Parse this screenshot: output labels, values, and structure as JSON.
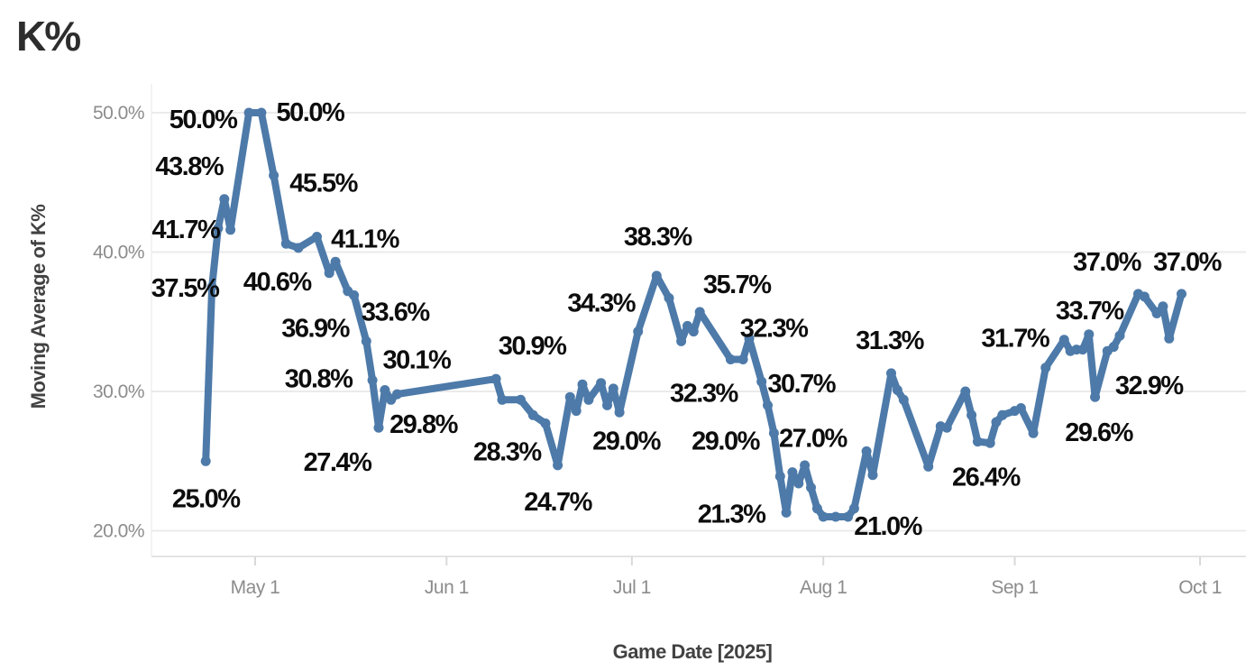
{
  "chart_data": {
    "type": "line",
    "title": "K%",
    "xlabel": "Game Date [2025]",
    "ylabel": "Moving Average of K%",
    "series_name": "Moving Average of K%",
    "line_color": "#4d7aa9",
    "marker_color": "#4d7aa9",
    "data_label_color": "#0d0d0d",
    "grid": true,
    "legend": "none",
    "ylim": [
      18,
      52
    ],
    "y_ticks": [
      {
        "value": 50,
        "label": "50.0%"
      },
      {
        "value": 40,
        "label": "40.0%"
      },
      {
        "value": 30,
        "label": "30.0%"
      },
      {
        "value": 20,
        "label": "20.0%"
      }
    ],
    "x_ticks": [
      {
        "date": "2025-05-01",
        "label": "May 1"
      },
      {
        "date": "2025-06-01",
        "label": "Jun 1"
      },
      {
        "date": "2025-07-01",
        "label": "Jul 1"
      },
      {
        "date": "2025-08-01",
        "label": "Aug 1"
      },
      {
        "date": "2025-09-01",
        "label": "Sep 1"
      },
      {
        "date": "2025-10-01",
        "label": "Oct 1"
      }
    ],
    "points": [
      {
        "date": "2025-04-23",
        "value": 25.0,
        "label": "25.0%",
        "offset": [
          0,
          41
        ]
      },
      {
        "date": "2025-04-24",
        "value": 37.5,
        "label": "37.5%",
        "offset": [
          -30,
          1
        ]
      },
      {
        "date": "2025-04-25",
        "value": 41.7,
        "label": "41.7%",
        "offset": [
          -36,
          1
        ]
      },
      {
        "date": "2025-04-26",
        "value": 43.8,
        "label": "43.8%",
        "offset": [
          -39,
          -37
        ]
      },
      {
        "date": "2025-04-27",
        "value": 41.6
      },
      {
        "date": "2025-04-30",
        "value": 50.0,
        "label": "50.0%",
        "offset": [
          -51,
          7
        ]
      },
      {
        "date": "2025-05-02",
        "value": 50.0,
        "label": "50.0%",
        "offset": [
          54,
          -1
        ]
      },
      {
        "date": "2025-05-04",
        "value": 45.5,
        "label": "45.5%",
        "offset": [
          55,
          8
        ]
      },
      {
        "date": "2025-05-06",
        "value": 40.6,
        "label": "40.6%",
        "offset": [
          -10,
          42
        ]
      },
      {
        "date": "2025-05-08",
        "value": 40.3
      },
      {
        "date": "2025-05-11",
        "value": 41.1,
        "label": "41.1%",
        "offset": [
          53,
          2
        ]
      },
      {
        "date": "2025-05-13",
        "value": 38.5
      },
      {
        "date": "2025-05-14",
        "value": 39.3
      },
      {
        "date": "2025-05-16",
        "value": 37.2
      },
      {
        "date": "2025-05-17",
        "value": 36.9,
        "label": "36.9%",
        "offset": [
          -43,
          36
        ]
      },
      {
        "date": "2025-05-19",
        "value": 33.6,
        "label": "33.6%",
        "offset": [
          32,
          -33
        ]
      },
      {
        "date": "2025-05-20",
        "value": 30.8,
        "label": "30.8%",
        "offset": [
          -60,
          -2
        ]
      },
      {
        "date": "2025-05-21",
        "value": 27.4,
        "label": "27.4%",
        "offset": [
          -46,
          38
        ]
      },
      {
        "date": "2025-05-22",
        "value": 30.1,
        "label": "30.1%",
        "offset": [
          35,
          -34
        ]
      },
      {
        "date": "2025-05-23",
        "value": 29.4
      },
      {
        "date": "2025-05-24",
        "value": 29.8,
        "label": "29.8%",
        "offset": [
          29,
          33
        ]
      },
      {
        "date": "2025-06-09",
        "value": 30.9,
        "label": "30.9%",
        "offset": [
          40,
          -37
        ]
      },
      {
        "date": "2025-06-10",
        "value": 29.4
      },
      {
        "date": "2025-06-13",
        "value": 29.4
      },
      {
        "date": "2025-06-15",
        "value": 28.3,
        "label": "28.3%",
        "offset": [
          -29,
          40
        ]
      },
      {
        "date": "2025-06-17",
        "value": 27.7
      },
      {
        "date": "2025-06-19",
        "value": 24.7,
        "label": "24.7%",
        "offset": [
          0,
          40
        ]
      },
      {
        "date": "2025-06-21",
        "value": 29.6
      },
      {
        "date": "2025-06-22",
        "value": 28.6
      },
      {
        "date": "2025-06-23",
        "value": 30.5
      },
      {
        "date": "2025-06-24",
        "value": 29.4
      },
      {
        "date": "2025-06-26",
        "value": 30.6
      },
      {
        "date": "2025-06-27",
        "value": 29.0,
        "label": "29.0%",
        "offset": [
          21,
          39
        ]
      },
      {
        "date": "2025-06-28",
        "value": 30.2
      },
      {
        "date": "2025-06-29",
        "value": 28.5
      },
      {
        "date": "2025-07-02",
        "value": 34.3,
        "label": "34.3%",
        "offset": [
          -41,
          -32
        ]
      },
      {
        "date": "2025-07-05",
        "value": 38.3,
        "label": "38.3%",
        "offset": [
          1,
          -44
        ]
      },
      {
        "date": "2025-07-07",
        "value": 36.7
      },
      {
        "date": "2025-07-09",
        "value": 33.6
      },
      {
        "date": "2025-07-10",
        "value": 34.7
      },
      {
        "date": "2025-07-11",
        "value": 34.3
      },
      {
        "date": "2025-07-12",
        "value": 35.7,
        "label": "35.7%",
        "offset": [
          41,
          -31
        ]
      },
      {
        "date": "2025-07-17",
        "value": 32.3,
        "label": "32.3%",
        "offset": [
          -30,
          37
        ]
      },
      {
        "date": "2025-07-19",
        "value": 32.3,
        "label": "32.3%",
        "offset": [
          34,
          -35
        ]
      },
      {
        "date": "2025-07-20",
        "value": 33.8
      },
      {
        "date": "2025-07-22",
        "value": 30.7,
        "label": "30.7%",
        "offset": [
          44,
          2
        ]
      },
      {
        "date": "2025-07-23",
        "value": 29.0,
        "label": "29.0%",
        "offset": [
          -47,
          39
        ]
      },
      {
        "date": "2025-07-24",
        "value": 27.0,
        "label": "27.0%",
        "offset": [
          43,
          5
        ]
      },
      {
        "date": "2025-07-25",
        "value": 23.9
      },
      {
        "date": "2025-07-26",
        "value": 21.3,
        "label": "21.3%",
        "offset": [
          -61,
          1
        ]
      },
      {
        "date": "2025-07-27",
        "value": 24.2
      },
      {
        "date": "2025-07-28",
        "value": 23.4
      },
      {
        "date": "2025-07-29",
        "value": 24.7
      },
      {
        "date": "2025-07-30",
        "value": 23.1
      },
      {
        "date": "2025-07-31",
        "value": 21.6
      },
      {
        "date": "2025-08-01",
        "value": 21.0
      },
      {
        "date": "2025-08-03",
        "value": 21.0
      },
      {
        "date": "2025-08-05",
        "value": 21.0,
        "label": "21.0%",
        "offset": [
          44,
          10
        ]
      },
      {
        "date": "2025-08-06",
        "value": 21.6
      },
      {
        "date": "2025-08-08",
        "value": 25.7
      },
      {
        "date": "2025-08-09",
        "value": 24.0
      },
      {
        "date": "2025-08-12",
        "value": 31.3,
        "label": "31.3%",
        "offset": [
          -2,
          -37
        ]
      },
      {
        "date": "2025-08-13",
        "value": 30.1
      },
      {
        "date": "2025-08-14",
        "value": 29.4
      },
      {
        "date": "2025-08-18",
        "value": 24.6
      },
      {
        "date": "2025-08-20",
        "value": 27.5
      },
      {
        "date": "2025-08-21",
        "value": 27.4
      },
      {
        "date": "2025-08-24",
        "value": 30.0
      },
      {
        "date": "2025-08-25",
        "value": 28.3
      },
      {
        "date": "2025-08-26",
        "value": 26.4,
        "label": "26.4%",
        "offset": [
          9,
          39
        ]
      },
      {
        "date": "2025-08-28",
        "value": 26.3
      },
      {
        "date": "2025-08-29",
        "value": 27.8
      },
      {
        "date": "2025-08-30",
        "value": 28.3
      },
      {
        "date": "2025-09-01",
        "value": 28.6
      },
      {
        "date": "2025-09-02",
        "value": 28.8
      },
      {
        "date": "2025-09-04",
        "value": 27.0
      },
      {
        "date": "2025-09-06",
        "value": 31.7,
        "label": "31.7%",
        "offset": [
          -34,
          -33
        ]
      },
      {
        "date": "2025-09-09",
        "value": 33.7,
        "label": "33.7%",
        "offset": [
          28,
          -33
        ]
      },
      {
        "date": "2025-09-10",
        "value": 32.9
      },
      {
        "date": "2025-09-11",
        "value": 33.0
      },
      {
        "date": "2025-09-12",
        "value": 33.0
      },
      {
        "date": "2025-09-13",
        "value": 34.1
      },
      {
        "date": "2025-09-14",
        "value": 29.6,
        "label": "29.6%",
        "offset": [
          4,
          39
        ]
      },
      {
        "date": "2025-09-16",
        "value": 32.9,
        "label": "32.9%",
        "offset": [
          46,
          38
        ]
      },
      {
        "date": "2025-09-17",
        "value": 33.2
      },
      {
        "date": "2025-09-18",
        "value": 34.0
      },
      {
        "date": "2025-09-21",
        "value": 37.0,
        "label": "37.0%",
        "offset": [
          -35,
          -36
        ]
      },
      {
        "date": "2025-09-22",
        "value": 36.8
      },
      {
        "date": "2025-09-24",
        "value": 35.6
      },
      {
        "date": "2025-09-25",
        "value": 36.1
      },
      {
        "date": "2025-09-26",
        "value": 33.8
      },
      {
        "date": "2025-09-28",
        "value": 37.0,
        "label": "37.0%",
        "offset": [
          6,
          -36
        ]
      }
    ]
  }
}
